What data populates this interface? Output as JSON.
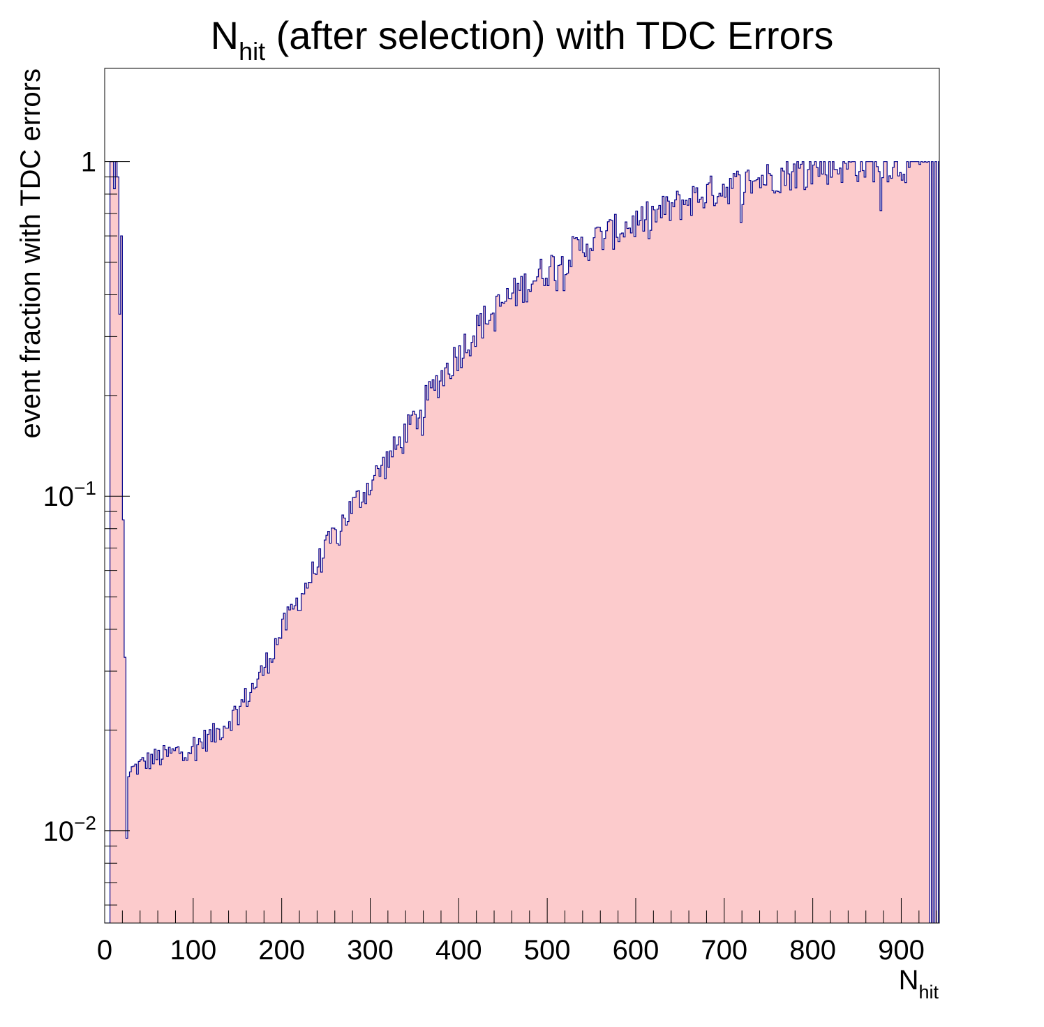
{
  "chart_data": {
    "type": "histogram",
    "title": {
      "main": "N",
      "sub": "hit",
      "rest": " (after selection) with TDC Errors"
    },
    "xlabel": {
      "main": "N",
      "sub": "hit"
    },
    "ylabel": "event fraction with TDC errors",
    "x_ticks": [
      "0",
      "100",
      "200",
      "300",
      "400",
      "500",
      "600",
      "700",
      "800",
      "900"
    ],
    "y_ticks": [
      {
        "value": 1,
        "base": "1",
        "exp": ""
      },
      {
        "value": 0.1,
        "base": "10",
        "exp": "−1"
      },
      {
        "value": 0.01,
        "base": "10",
        "exp": "−2"
      }
    ],
    "xlim": [
      0,
      943
    ],
    "ylim": [
      0.0053,
      1.9
    ],
    "y_scale": "log",
    "bin_width": 2,
    "fill_color": "#fccbcc",
    "line_color": "#00008b",
    "peak_bins": [
      {
        "x": 6,
        "y": 1
      },
      {
        "x": 8,
        "y": 1
      },
      {
        "x": 10,
        "y": 0.83
      },
      {
        "x": 12,
        "y": 1
      },
      {
        "x": 14,
        "y": 0.9
      },
      {
        "x": 16,
        "y": 0.35
      },
      {
        "x": 18,
        "y": 0.6
      },
      {
        "x": 20,
        "y": 0.085
      },
      {
        "x": 22,
        "y": 0.033
      },
      {
        "x": 24,
        "y": 0.0095
      },
      {
        "x": 26,
        "y": 0.0145
      },
      {
        "x": 28,
        "y": 0.015
      }
    ],
    "curve_points": [
      [
        30,
        0.0152
      ],
      [
        50,
        0.0163
      ],
      [
        75,
        0.017
      ],
      [
        100,
        0.018
      ],
      [
        125,
        0.0195
      ],
      [
        150,
        0.023
      ],
      [
        175,
        0.029
      ],
      [
        200,
        0.04
      ],
      [
        225,
        0.053
      ],
      [
        250,
        0.07
      ],
      [
        275,
        0.09
      ],
      [
        300,
        0.11
      ],
      [
        325,
        0.135
      ],
      [
        350,
        0.17
      ],
      [
        375,
        0.22
      ],
      [
        400,
        0.27
      ],
      [
        425,
        0.33
      ],
      [
        450,
        0.38
      ],
      [
        475,
        0.43
      ],
      [
        500,
        0.48
      ],
      [
        525,
        0.53
      ],
      [
        550,
        0.58
      ],
      [
        575,
        0.62
      ],
      [
        600,
        0.66
      ],
      [
        625,
        0.7
      ],
      [
        650,
        0.75
      ],
      [
        675,
        0.8
      ],
      [
        700,
        0.84
      ],
      [
        725,
        0.87
      ],
      [
        750,
        0.9
      ],
      [
        775,
        0.93
      ],
      [
        800,
        0.96
      ],
      [
        825,
        0.97
      ],
      [
        850,
        0.98
      ],
      [
        875,
        0.985
      ],
      [
        900,
        0.98
      ],
      [
        925,
        0.98
      ],
      [
        930,
        0.98
      ]
    ],
    "tail_bins": [
      {
        "x": 932,
        "y": 0.0053
      },
      {
        "x": 934,
        "y": 1
      },
      {
        "x": 936,
        "y": 0.0053
      },
      {
        "x": 938,
        "y": 1
      },
      {
        "x": 940,
        "y": 0.0053
      },
      {
        "x": 942,
        "y": 1
      }
    ],
    "last_filled_x": 944
  }
}
